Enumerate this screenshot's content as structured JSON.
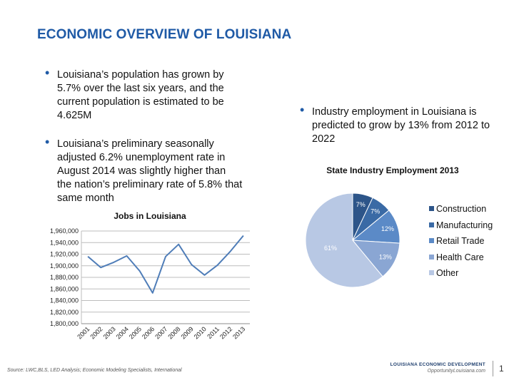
{
  "slide": {
    "title": "ECONOMIC OVERVIEW OF LOUISIANA",
    "bullets": [
      "Louisiana’s population has grown by 5.7% over the last six years, and the current population is estimated to be 4.625M",
      "Louisiana’s preliminary seasonally adjusted 6.2% unemployment rate in August 2014 was slightly higher than the nation’s preliminary rate of 5.8% that same month",
      "Industry employment in Louisiana is predicted to grow by 13% from 2012 to 2022"
    ],
    "bullet_glyph": "•",
    "source": "Source: LWC,BLS, LED Analysis; Economic Modeling Specialists, International",
    "footer_org": "LOUISIANA ECONOMIC DEVELOPMENT",
    "footer_url": "OpportunityLouisiana.com",
    "page_number": "1"
  },
  "chart_data": [
    {
      "type": "line",
      "title": "Jobs in Louisiana",
      "x": [
        "2001",
        "2002",
        "2003",
        "2004",
        "2005",
        "2006",
        "2007",
        "2008",
        "2009",
        "2010",
        "2011",
        "2012",
        "2013"
      ],
      "series": [
        {
          "name": "Jobs",
          "values": [
            1916000,
            1897000,
            1906000,
            1917000,
            1891000,
            1853000,
            1916000,
            1937000,
            1902000,
            1884000,
            1901000,
            1925000,
            1952000
          ],
          "color": "#4f7db8"
        }
      ],
      "ylim": [
        1800000,
        1960000
      ],
      "yticks": [
        1800000,
        1820000,
        1840000,
        1860000,
        1880000,
        1900000,
        1920000,
        1940000,
        1960000
      ],
      "ytick_labels": [
        "1,800,000",
        "1,820,000",
        "1,840,000",
        "1,860,000",
        "1,880,000",
        "1,900,000",
        "1,920,000",
        "1,940,000",
        "1,960,000"
      ],
      "grid": true
    },
    {
      "type": "pie",
      "title": "State Industry Employment 2013",
      "labels": [
        "Construction",
        "Manufacturing",
        "Retail Trade",
        "Health Care",
        "Other"
      ],
      "values": [
        7,
        7,
        12,
        13,
        61
      ],
      "data_labels": [
        "7%",
        "7%",
        "12%",
        "13%",
        "61%"
      ],
      "colors": [
        "#2d5589",
        "#3a6aa5",
        "#5b8ac7",
        "#8aa6d3",
        "#b8c8e4"
      ],
      "legend": "right"
    }
  ]
}
